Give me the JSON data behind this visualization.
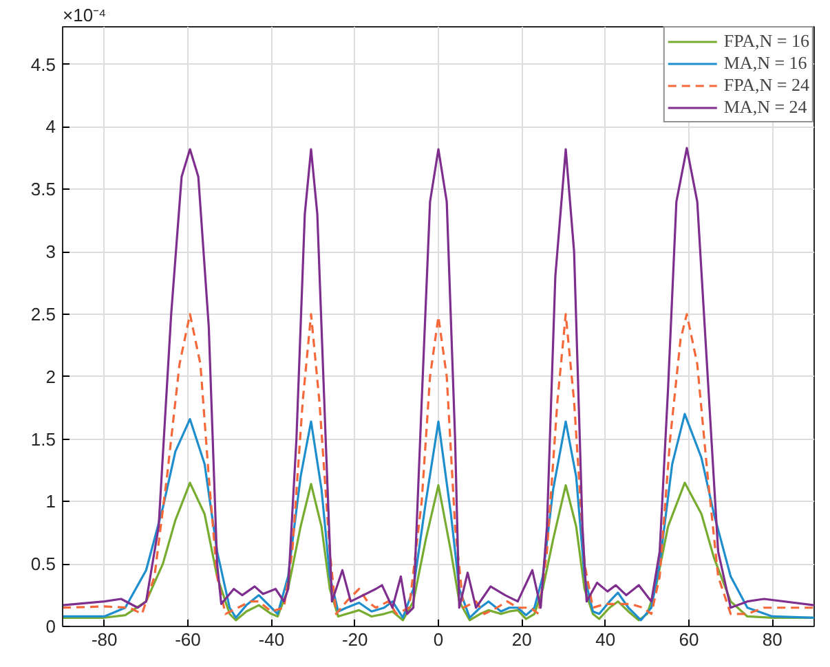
{
  "chart_data": {
    "type": "line",
    "annotations": [
      "×10⁻⁴"
    ],
    "xlim": [
      -90,
      90
    ],
    "xticks": [
      -80,
      -60,
      -40,
      -20,
      0,
      20,
      40,
      60,
      80
    ],
    "ylim": [
      0,
      4.8
    ],
    "yticks": [
      0,
      0.5,
      1,
      1.5,
      2,
      2.5,
      3,
      3.5,
      4,
      4.5
    ],
    "grid": true,
    "legend": "top right",
    "series": [
      {
        "name": "FPA,N = 16",
        "color": "#77ac30",
        "line_style": "solid",
        "x": [
          -90,
          -80,
          -75,
          -70,
          -66,
          -63,
          -59.5,
          -56,
          -53,
          -50,
          -48.5,
          -46,
          -43,
          -40,
          -38.5,
          -36,
          -33,
          -30.5,
          -28,
          -26,
          -24,
          -22,
          -19,
          -16,
          -13,
          -11,
          -8.5,
          -6,
          -3,
          0,
          3,
          5,
          7.5,
          10,
          12,
          15,
          17,
          19,
          21,
          23,
          25,
          27.5,
          30.5,
          33,
          35,
          37,
          38.5,
          41,
          43,
          45.5,
          48,
          50,
          52,
          55,
          59,
          63,
          66,
          70,
          74,
          80,
          90
        ],
        "values": [
          0.07,
          0.07,
          0.09,
          0.2,
          0.5,
          0.85,
          1.15,
          0.9,
          0.4,
          0.1,
          0.05,
          0.12,
          0.17,
          0.1,
          0.08,
          0.3,
          0.8,
          1.14,
          0.8,
          0.3,
          0.08,
          0.1,
          0.13,
          0.08,
          0.1,
          0.12,
          0.05,
          0.2,
          0.7,
          1.13,
          0.6,
          0.2,
          0.05,
          0.1,
          0.13,
          0.1,
          0.12,
          0.13,
          0.06,
          0.1,
          0.3,
          0.7,
          1.13,
          0.8,
          0.3,
          0.1,
          0.06,
          0.15,
          0.2,
          0.12,
          0.05,
          0.1,
          0.3,
          0.8,
          1.15,
          0.9,
          0.55,
          0.2,
          0.08,
          0.07,
          0.07
        ]
      },
      {
        "name": "MA,N = 16",
        "color": "#1f8ecd",
        "line_style": "solid",
        "x": [
          -90,
          -80,
          -75,
          -70,
          -66,
          -63,
          -59.5,
          -56,
          -53,
          -50,
          -48.5,
          -46,
          -43,
          -40,
          -38.5,
          -36,
          -33,
          -30.5,
          -28,
          -26,
          -24,
          -22,
          -19,
          -16,
          -13,
          -11,
          -8.5,
          -6,
          -3,
          0,
          3,
          5,
          7.5,
          10,
          12,
          15,
          17,
          19,
          21,
          23,
          25,
          27.5,
          30.5,
          33,
          35,
          37,
          38.5,
          41,
          43,
          45.5,
          48.5,
          51,
          53,
          56,
          59,
          63,
          66,
          70,
          74,
          80,
          90
        ],
        "values": [
          0.08,
          0.08,
          0.15,
          0.45,
          0.95,
          1.4,
          1.66,
          1.3,
          0.6,
          0.15,
          0.07,
          0.17,
          0.25,
          0.15,
          0.1,
          0.4,
          1.2,
          1.64,
          1.1,
          0.4,
          0.12,
          0.15,
          0.19,
          0.12,
          0.15,
          0.2,
          0.07,
          0.3,
          1.0,
          1.64,
          0.9,
          0.3,
          0.07,
          0.15,
          0.2,
          0.12,
          0.15,
          0.15,
          0.09,
          0.15,
          0.4,
          1.1,
          1.64,
          1.2,
          0.4,
          0.12,
          0.1,
          0.2,
          0.27,
          0.15,
          0.05,
          0.15,
          0.5,
          1.3,
          1.7,
          1.35,
          0.9,
          0.4,
          0.15,
          0.08,
          0.07
        ]
      },
      {
        "name": "FPA,N = 24",
        "color": "#f4683a",
        "line_style": "dashed",
        "x": [
          -90,
          -80,
          -74,
          -71,
          -68,
          -65,
          -62,
          -59.5,
          -57,
          -55,
          -53,
          -51,
          -48,
          -45,
          -43,
          -40,
          -37,
          -35,
          -32.5,
          -30.5,
          -28.5,
          -26,
          -24.5,
          -22,
          -19,
          -17,
          -15,
          -12,
          -10,
          -7,
          -4,
          -2,
          0,
          2,
          4,
          6,
          9,
          11,
          14,
          16.5,
          19,
          22,
          24,
          26,
          28.5,
          30.5,
          32.5,
          35,
          37,
          40,
          43,
          46,
          49,
          51,
          53,
          55.5,
          58,
          59.5,
          62,
          64.5,
          67,
          70,
          74,
          78,
          90
        ],
        "values": [
          0.15,
          0.16,
          0.15,
          0.1,
          0.4,
          1.2,
          2.1,
          2.5,
          2.1,
          1.2,
          0.4,
          0.1,
          0.15,
          0.2,
          0.2,
          0.12,
          0.15,
          0.6,
          1.8,
          2.5,
          1.8,
          0.6,
          0.1,
          0.2,
          0.3,
          0.2,
          0.15,
          0.2,
          0.1,
          0.15,
          1.0,
          2.0,
          2.48,
          2.0,
          0.8,
          0.15,
          0.2,
          0.1,
          0.15,
          0.2,
          0.15,
          0.15,
          0.1,
          0.6,
          1.8,
          2.5,
          1.8,
          0.5,
          0.15,
          0.18,
          0.18,
          0.18,
          0.15,
          0.1,
          0.4,
          1.5,
          2.3,
          2.5,
          2.1,
          1.2,
          0.4,
          0.1,
          0.1,
          0.15,
          0.15
        ]
      },
      {
        "name": "MA,N = 24",
        "color": "#7e2f8e",
        "line_style": "solid",
        "x": [
          -90,
          -80,
          -76,
          -72,
          -70,
          -67,
          -64,
          -61.5,
          -59.5,
          -57.5,
          -55,
          -53,
          -52,
          -49,
          -47,
          -44,
          -42,
          -39,
          -37,
          -36,
          -34,
          -32,
          -30.5,
          -29,
          -27,
          -25.5,
          -23,
          -21,
          -18,
          -15,
          -13.5,
          -11,
          -9,
          -7.5,
          -6,
          -4,
          -2,
          0,
          2,
          4,
          5,
          7,
          9,
          12.5,
          16,
          19,
          22.5,
          24.5,
          26,
          28,
          30.5,
          32.5,
          34.5,
          35.5,
          38,
          40.5,
          42.5,
          45,
          48,
          51,
          53,
          55,
          57,
          59.5,
          62,
          64.5,
          67,
          70,
          74,
          78,
          90
        ],
        "values": [
          0.17,
          0.2,
          0.22,
          0.15,
          0.2,
          0.8,
          2.5,
          3.6,
          3.82,
          3.6,
          2.4,
          0.5,
          0.18,
          0.3,
          0.25,
          0.32,
          0.26,
          0.3,
          0.2,
          0.3,
          1.5,
          3.3,
          3.82,
          3.3,
          1.5,
          0.2,
          0.45,
          0.2,
          0.25,
          0.3,
          0.33,
          0.15,
          0.4,
          0.1,
          0.15,
          1.8,
          3.4,
          3.82,
          3.4,
          1.5,
          0.15,
          0.43,
          0.15,
          0.32,
          0.25,
          0.2,
          0.45,
          0.15,
          0.8,
          2.8,
          3.82,
          3.0,
          0.8,
          0.2,
          0.35,
          0.28,
          0.33,
          0.25,
          0.33,
          0.2,
          0.6,
          1.9,
          3.4,
          3.83,
          3.4,
          2.0,
          0.6,
          0.15,
          0.2,
          0.22,
          0.17
        ]
      }
    ]
  }
}
